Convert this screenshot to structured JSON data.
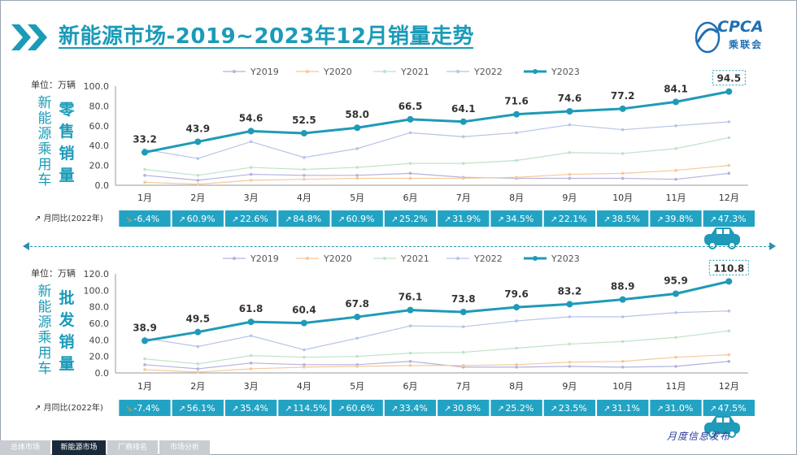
{
  "header": {
    "title": "新能源市场-2019~2023年12月销量走势",
    "logo_text": "CPCA",
    "logo_sub": "乘联会"
  },
  "colors": {
    "Y2019": "#b3b3dc",
    "Y2020": "#f7c89a",
    "Y2021": "#bfe3c8",
    "Y2022": "#b7c3e8",
    "Y2023": "#1f9ab8",
    "table_bg": "#23a3c3"
  },
  "yoy_label": "月同比(2022年)",
  "chart_data": [
    {
      "type": "line",
      "name": "retail",
      "side_label": "新能源乘用车",
      "kind_label": "零售销量",
      "unit_label": "单位：万辆",
      "categories": [
        "1月",
        "2月",
        "3月",
        "4月",
        "5月",
        "6月",
        "7月",
        "8月",
        "9月",
        "10月",
        "11月",
        "12月"
      ],
      "ylim": [
        0,
        100
      ],
      "yticks": [
        "0.0",
        "20.0",
        "40.0",
        "60.0",
        "80.0",
        "100.0"
      ],
      "legend": [
        "Y2019",
        "Y2020",
        "Y2021",
        "Y2022",
        "Y2023"
      ],
      "series": [
        {
          "name": "Y2019",
          "values": [
            10,
            5,
            11,
            10,
            10,
            12,
            8,
            7,
            7,
            7,
            6,
            12
          ]
        },
        {
          "name": "Y2020",
          "values": [
            3,
            1,
            5,
            6,
            7,
            7,
            7,
            8,
            11,
            12,
            15,
            20
          ]
        },
        {
          "name": "Y2021",
          "values": [
            16,
            10,
            18,
            16,
            18,
            22,
            22,
            25,
            33,
            32,
            37,
            48
          ]
        },
        {
          "name": "Y2022",
          "values": [
            36,
            27,
            44,
            28,
            37,
            53,
            49,
            53,
            61,
            56,
            60,
            64
          ]
        },
        {
          "name": "Y2023",
          "values": [
            33.2,
            43.9,
            54.6,
            52.5,
            58.0,
            66.5,
            64.1,
            71.6,
            74.6,
            77.2,
            84.1,
            94.5
          ]
        }
      ],
      "data_labels": [
        "33.2",
        "43.9",
        "54.6",
        "52.5",
        "58.0",
        "66.5",
        "64.1",
        "71.6",
        "74.6",
        "77.2",
        "84.1",
        "94.5"
      ],
      "yoy": [
        "-6.4%",
        "60.9%",
        "22.6%",
        "84.8%",
        "60.9%",
        "25.2%",
        "31.9%",
        "34.5%",
        "22.1%",
        "38.5%",
        "39.8%",
        "47.3%"
      ]
    },
    {
      "type": "line",
      "name": "wholesale",
      "side_label": "新能源乘用车",
      "kind_label": "批发销量",
      "unit_label": "单位：万辆",
      "categories": [
        "1月",
        "2月",
        "3月",
        "4月",
        "5月",
        "6月",
        "7月",
        "8月",
        "9月",
        "10月",
        "11月",
        "12月"
      ],
      "ylim": [
        0,
        120
      ],
      "yticks": [
        "0.0",
        "20.0",
        "40.0",
        "60.0",
        "80.0",
        "100.0",
        "120.0"
      ],
      "legend": [
        "Y2019",
        "Y2020",
        "Y2021",
        "Y2022",
        "Y2023"
      ],
      "series": [
        {
          "name": "Y2019",
          "values": [
            10,
            5,
            12,
            10,
            10,
            14,
            7,
            7,
            8,
            7,
            8,
            14
          ]
        },
        {
          "name": "Y2020",
          "values": [
            4,
            1,
            5,
            7,
            8,
            9,
            9,
            10,
            13,
            14,
            19,
            22
          ]
        },
        {
          "name": "Y2021",
          "values": [
            17,
            11,
            21,
            19,
            20,
            24,
            25,
            30,
            35,
            38,
            43,
            51
          ]
        },
        {
          "name": "Y2022",
          "values": [
            42,
            32,
            45,
            28,
            42,
            57,
            56,
            63,
            68,
            68,
            73,
            75
          ]
        },
        {
          "name": "Y2023",
          "values": [
            38.9,
            49.5,
            61.8,
            60.4,
            67.8,
            76.1,
            73.8,
            79.6,
            83.2,
            88.9,
            95.9,
            110.8
          ]
        }
      ],
      "data_labels": [
        "38.9",
        "49.5",
        "61.8",
        "60.4",
        "67.8",
        "76.1",
        "73.8",
        "79.6",
        "83.2",
        "88.9",
        "95.9",
        "110.8"
      ],
      "yoy": [
        "-7.4%",
        "56.1%",
        "35.4%",
        "114.5%",
        "60.6%",
        "33.4%",
        "30.8%",
        "25.2%",
        "23.5%",
        "31.1%",
        "31.0%",
        "47.5%"
      ]
    }
  ],
  "footer": {
    "tabs": [
      "总体市场",
      "新能源市场",
      "厂商排名",
      "市场分析"
    ],
    "active_tab": 1,
    "note": "月度信息发布"
  }
}
